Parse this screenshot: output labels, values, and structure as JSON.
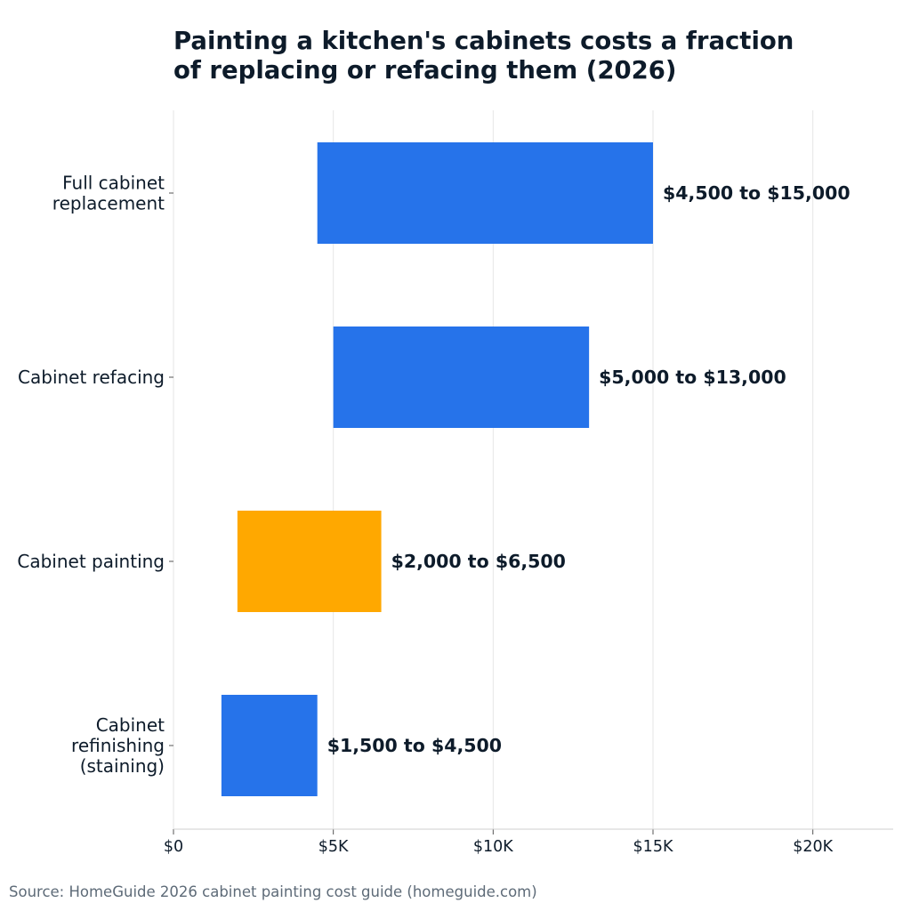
{
  "chart_data": {
    "type": "bar",
    "orientation": "horizontal",
    "title_lines": [
      "Painting a kitchen's cabinets costs a fraction",
      "of replacing or refacing them (2026)"
    ],
    "categories": [
      "Full cabinet replacement",
      "Cabinet refacing",
      "Cabinet painting",
      "Cabinet refinishing (staining)"
    ],
    "category_label_lines": [
      [
        "Full cabinet",
        "replacement"
      ],
      [
        "Cabinet refacing"
      ],
      [
        "Cabinet painting"
      ],
      [
        "Cabinet",
        "refinishing",
        "(staining)"
      ]
    ],
    "ranges": [
      {
        "low": 4500,
        "high": 15000,
        "label": "$4,500 to $15,000",
        "color": "#2673ea"
      },
      {
        "low": 5000,
        "high": 13000,
        "label": "$5,000 to $13,000",
        "color": "#2673ea"
      },
      {
        "low": 2000,
        "high": 6500,
        "label": "$2,000 to $6,500",
        "color": "#ffa800"
      },
      {
        "low": 1500,
        "high": 4500,
        "label": "$1,500 to $4,500",
        "color": "#2673ea"
      }
    ],
    "xlim": [
      0,
      22500
    ],
    "xticks": [
      {
        "value": 0,
        "label": "$0"
      },
      {
        "value": 5000,
        "label": "$5K"
      },
      {
        "value": 10000,
        "label": "$10K"
      },
      {
        "value": 15000,
        "label": "$15K"
      },
      {
        "value": 20000,
        "label": "$20K"
      }
    ],
    "grid": true,
    "source": "Source: HomeGuide 2026 cabinet painting cost guide (homeguide.com)"
  }
}
